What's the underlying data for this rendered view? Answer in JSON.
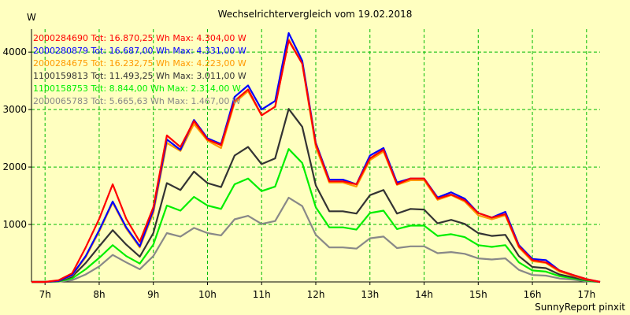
{
  "chart_data": {
    "type": "line",
    "title": "Wechselrichtervergleich vom 19.02.2018",
    "ylabel": "W",
    "xlabel": "",
    "credit": "SunnyReport pinxit",
    "x_ticks": [
      "7h",
      "8h",
      "9h",
      "10h",
      "11h",
      "12h",
      "13h",
      "14h",
      "15h",
      "16h",
      "17h"
    ],
    "y_ticks": [
      1000,
      2000,
      3000,
      4000
    ],
    "xlim": [
      6.75,
      17.25
    ],
    "ylim": [
      0,
      4400
    ],
    "grid": true,
    "legend_position": "top-left",
    "x": [
      6.75,
      7.0,
      7.25,
      7.5,
      7.75,
      8.0,
      8.25,
      8.5,
      8.75,
      9.0,
      9.25,
      9.5,
      9.75,
      10.0,
      10.25,
      10.5,
      10.75,
      11.0,
      11.25,
      11.5,
      11.75,
      12.0,
      12.25,
      12.5,
      12.75,
      13.0,
      13.25,
      13.5,
      13.75,
      14.0,
      14.25,
      14.5,
      14.75,
      15.0,
      15.25,
      15.5,
      15.75,
      16.0,
      16.25,
      16.5,
      16.75,
      17.0,
      17.25
    ],
    "series": [
      {
        "legend": "2000284690 Tot: 16.870,25 Wh Max: 4.304,00 W",
        "color": "#ff0000",
        "values": [
          0,
          0,
          30,
          150,
          600,
          1100,
          1700,
          1100,
          700,
          1300,
          2550,
          2350,
          2800,
          2480,
          2380,
          3150,
          3350,
          2900,
          3050,
          4200,
          3800,
          2400,
          1750,
          1750,
          1700,
          2150,
          2300,
          1700,
          1800,
          1800,
          1450,
          1520,
          1420,
          1200,
          1120,
          1180,
          620,
          380,
          340,
          200,
          120,
          50,
          0
        ]
      },
      {
        "legend": "2000280879 Tot: 16.687,00 Wh Max: 4.331,00 W",
        "color": "#0000ff",
        "values": [
          0,
          0,
          20,
          120,
          450,
          900,
          1400,
          950,
          620,
          1250,
          2480,
          2300,
          2820,
          2500,
          2400,
          3220,
          3420,
          3000,
          3150,
          4331,
          3850,
          2420,
          1780,
          1780,
          1700,
          2200,
          2330,
          1730,
          1800,
          1800,
          1470,
          1560,
          1450,
          1200,
          1120,
          1220,
          640,
          400,
          380,
          200,
          120,
          50,
          0
        ]
      },
      {
        "legend": "2000284675 Tot: 16.232,75 Wh Max: 4.223,00 W",
        "color": "#ff9900",
        "values": [
          0,
          0,
          20,
          110,
          430,
          880,
          1380,
          930,
          600,
          1200,
          2420,
          2280,
          2750,
          2460,
          2330,
          3120,
          3320,
          2900,
          3050,
          4223,
          3800,
          2350,
          1730,
          1730,
          1660,
          2120,
          2270,
          1690,
          1770,
          1770,
          1430,
          1510,
          1400,
          1160,
          1090,
          1160,
          600,
          360,
          330,
          180,
          110,
          40,
          0
        ]
      },
      {
        "legend": "1100159813 Tot: 11.493,25 Wh Max: 3.011,00 W",
        "color": "#333333",
        "values": [
          0,
          0,
          15,
          90,
          330,
          620,
          900,
          650,
          440,
          850,
          1720,
          1600,
          1920,
          1720,
          1650,
          2200,
          2350,
          2050,
          2150,
          3011,
          2700,
          1680,
          1230,
          1230,
          1190,
          1510,
          1600,
          1190,
          1270,
          1260,
          1020,
          1080,
          1010,
          850,
          800,
          820,
          450,
          260,
          240,
          130,
          80,
          30,
          0
        ]
      },
      {
        "legend": "1100158753 Tot: 8.844,00 Wh Max: 2.314,00 W",
        "color": "#00ee00",
        "values": [
          0,
          0,
          10,
          60,
          220,
          420,
          640,
          450,
          320,
          650,
          1330,
          1240,
          1480,
          1330,
          1270,
          1700,
          1800,
          1580,
          1660,
          2314,
          2070,
          1300,
          950,
          950,
          910,
          1200,
          1240,
          920,
          980,
          980,
          800,
          830,
          780,
          640,
          610,
          640,
          340,
          200,
          180,
          100,
          60,
          20,
          0
        ]
      },
      {
        "legend": "2000065783 Tot: 5.665,63 Wh Max: 1.467,00 W",
        "color": "#888888",
        "values": [
          0,
          0,
          5,
          30,
          130,
          270,
          470,
          340,
          220,
          450,
          850,
          790,
          940,
          850,
          810,
          1090,
          1150,
          1010,
          1060,
          1467,
          1320,
          820,
          600,
          600,
          580,
          760,
          790,
          590,
          620,
          620,
          500,
          520,
          490,
          410,
          390,
          410,
          210,
          120,
          110,
          60,
          40,
          10,
          0
        ]
      }
    ]
  },
  "colors": {
    "background": "#ffffc0",
    "grid": "#00bb00"
  }
}
